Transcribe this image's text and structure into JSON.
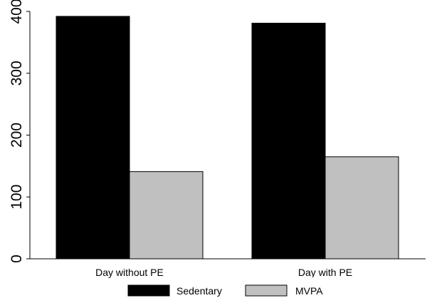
{
  "chart_data": {
    "type": "bar",
    "categories": [
      "Day without PE",
      "Day with PE"
    ],
    "series": [
      {
        "name": "Sedentary",
        "values": [
          392,
          381
        ],
        "color": "#000000"
      },
      {
        "name": "MVPA",
        "values": [
          141,
          165
        ],
        "color": "#c0c0c0"
      }
    ],
    "title": "",
    "xlabel": "",
    "ylabel": "",
    "ylim": [
      0,
      400
    ],
    "yticks": [
      0,
      100,
      200,
      300,
      400
    ],
    "grid": false,
    "legend_position": "bottom"
  }
}
